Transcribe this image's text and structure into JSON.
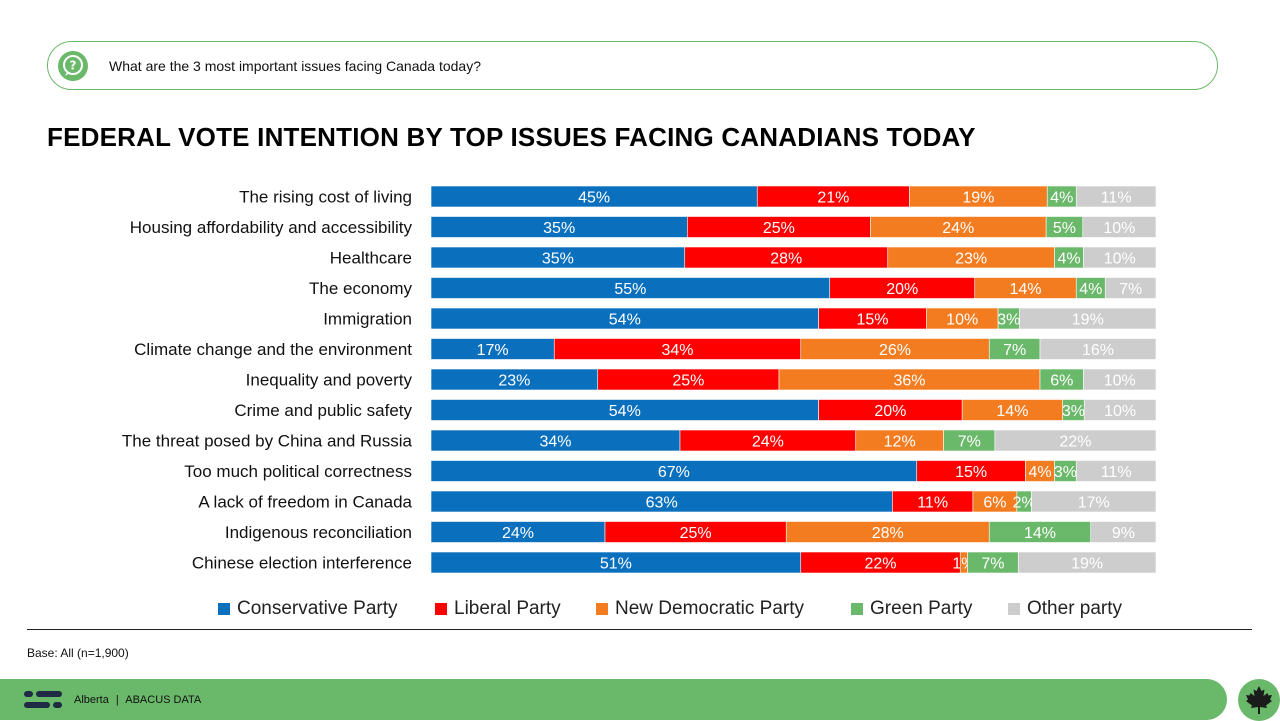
{
  "question": "What are the 3 most important issues facing Canada today?",
  "title": "FEDERAL VOTE INTENTION BY TOP ISSUES FACING CANADIANS TODAY",
  "base_note": "Base: All (n=1,900)",
  "footer": {
    "left": "Alberta",
    "separator": "|",
    "brand": "ABACUS DATA"
  },
  "icons": {
    "question": "question-bubble-icon",
    "logo": "abacus-logo-icon",
    "leaf": "maple-leaf-icon"
  },
  "colors": {
    "Conservative Party": "#0a70be",
    "Liberal Party": "#fe0000",
    "New Democratic Party": "#f47c20",
    "Green Party": "#6ab86a",
    "Other party": "#cdcdcd",
    "accent": "#6ab86a"
  },
  "chart_data": {
    "type": "bar",
    "orientation": "horizontal",
    "stacked": true,
    "title": "FEDERAL VOTE INTENTION BY TOP ISSUES FACING CANADIANS TODAY",
    "categories": [
      "The rising cost of living",
      "Housing affordability and accessibility",
      "Healthcare",
      "The economy",
      "Immigration",
      "Climate change and the environment",
      "Inequality and poverty",
      "Crime and public safety",
      "The threat posed by China and Russia",
      "Too much political correctness",
      "A lack of freedom in Canada",
      "Indigenous reconciliation",
      "Chinese election interference"
    ],
    "series": [
      {
        "name": "Conservative Party",
        "values": [
          45,
          35,
          35,
          55,
          54,
          17,
          23,
          54,
          34,
          67,
          63,
          24,
          51
        ]
      },
      {
        "name": "Liberal Party",
        "values": [
          21,
          25,
          28,
          20,
          15,
          34,
          25,
          20,
          24,
          15,
          11,
          25,
          22
        ]
      },
      {
        "name": "New Democratic Party",
        "values": [
          19,
          24,
          23,
          14,
          10,
          26,
          36,
          14,
          12,
          4,
          6,
          28,
          1
        ]
      },
      {
        "name": "Green Party",
        "values": [
          4,
          5,
          4,
          4,
          3,
          7,
          6,
          3,
          7,
          3,
          2,
          14,
          7
        ]
      },
      {
        "name": "Other party",
        "values": [
          11,
          10,
          10,
          7,
          19,
          16,
          10,
          10,
          22,
          11,
          17,
          9,
          19
        ]
      }
    ],
    "value_suffix": "%",
    "legend": [
      "Conservative Party",
      "Liberal Party",
      "New Democratic Party",
      "Green Party",
      "Other party"
    ],
    "legend_position": "bottom",
    "grid": false
  }
}
